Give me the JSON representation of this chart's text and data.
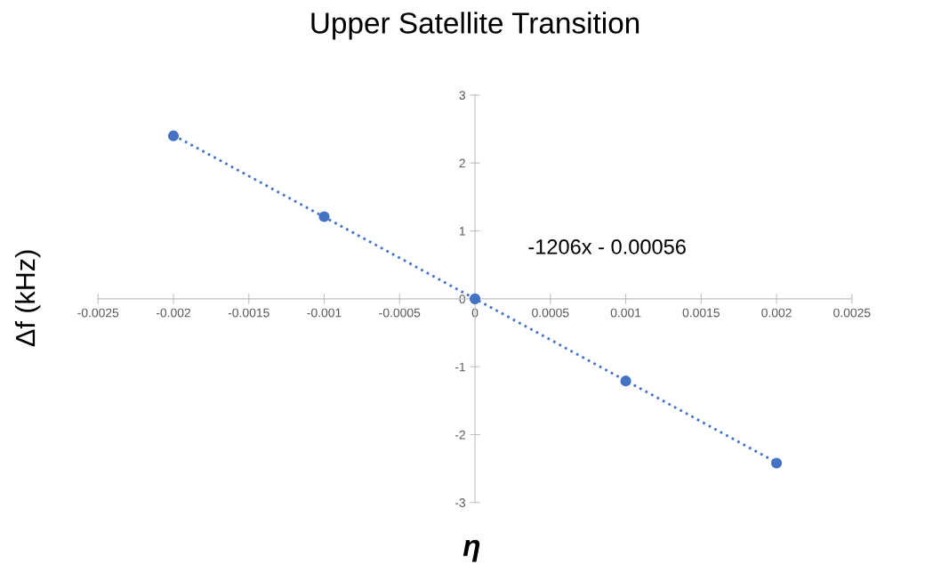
{
  "chart_data": {
    "type": "scatter",
    "title": "Upper Satellite Transition",
    "xlabel": "η",
    "ylabel": "Δf (kHz)",
    "x": [
      -0.002,
      -0.001,
      0,
      0.001,
      0.002
    ],
    "series": [
      {
        "color": "#4472c4",
        "values": [
          2.4,
          1.21,
          0,
          -1.21,
          -2.42
        ],
        "marker": "circle"
      },
      {
        "type": "line",
        "color": "#4472c4",
        "x": [
          -0.002,
          0.002
        ],
        "values": [
          2.41,
          -2.41
        ],
        "line_style": "dotted",
        "marker": "none"
      }
    ],
    "annotations": [
      "-1206x - 0.00056"
    ],
    "xlim": [
      -0.0025,
      0.0025
    ],
    "xticks": [
      -0.0025,
      -0.002,
      -0.0015,
      -0.001,
      -0.0005,
      0,
      0.0005,
      0.001,
      0.0015,
      0.002,
      0.0025
    ],
    "ylim": [
      -3,
      3
    ],
    "yticks": [
      -3,
      -2,
      -1,
      0,
      1,
      2,
      3
    ],
    "grid": false
  }
}
